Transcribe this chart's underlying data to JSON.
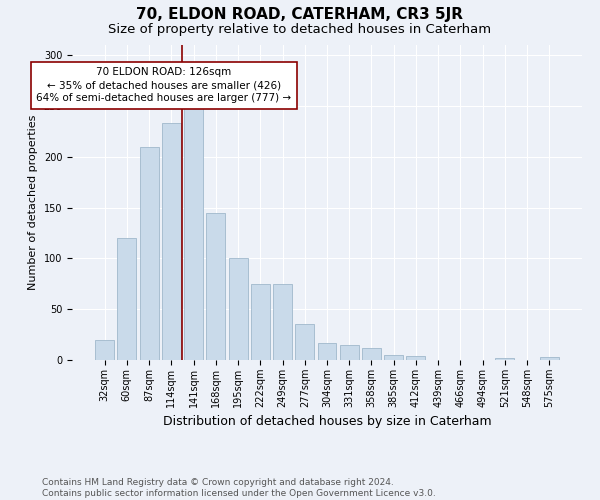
{
  "title": "70, ELDON ROAD, CATERHAM, CR3 5JR",
  "subtitle": "Size of property relative to detached houses in Caterham",
  "xlabel": "Distribution of detached houses by size in Caterham",
  "ylabel": "Number of detached properties",
  "footer_line1": "Contains HM Land Registry data © Crown copyright and database right 2024.",
  "footer_line2": "Contains public sector information licensed under the Open Government Licence v3.0.",
  "bar_labels": [
    "32sqm",
    "60sqm",
    "87sqm",
    "114sqm",
    "141sqm",
    "168sqm",
    "195sqm",
    "222sqm",
    "249sqm",
    "277sqm",
    "304sqm",
    "331sqm",
    "358sqm",
    "385sqm",
    "412sqm",
    "439sqm",
    "466sqm",
    "494sqm",
    "521sqm",
    "548sqm",
    "575sqm"
  ],
  "bar_values": [
    20,
    120,
    210,
    233,
    248,
    145,
    100,
    75,
    75,
    35,
    17,
    15,
    12,
    5,
    4,
    0,
    0,
    0,
    2,
    0,
    3
  ],
  "bar_color": "#c9daea",
  "bar_edge_color": "#a0b8cc",
  "vline_index": 3.5,
  "vline_color": "#8b0000",
  "annotation_text": "70 ELDON ROAD: 126sqm\n← 35% of detached houses are smaller (426)\n64% of semi-detached houses are larger (777) →",
  "annotation_box_color": "#ffffff",
  "annotation_box_edge": "#8b0000",
  "ylim": [
    0,
    310
  ],
  "yticks": [
    0,
    50,
    100,
    150,
    200,
    250,
    300
  ],
  "background_color": "#edf1f8",
  "plot_background": "#edf1f8",
  "grid_color": "#ffffff",
  "title_fontsize": 11,
  "subtitle_fontsize": 9.5,
  "xlabel_fontsize": 9,
  "ylabel_fontsize": 8,
  "tick_fontsize": 7,
  "footer_fontsize": 6.5,
  "annotation_fontsize": 7.5
}
